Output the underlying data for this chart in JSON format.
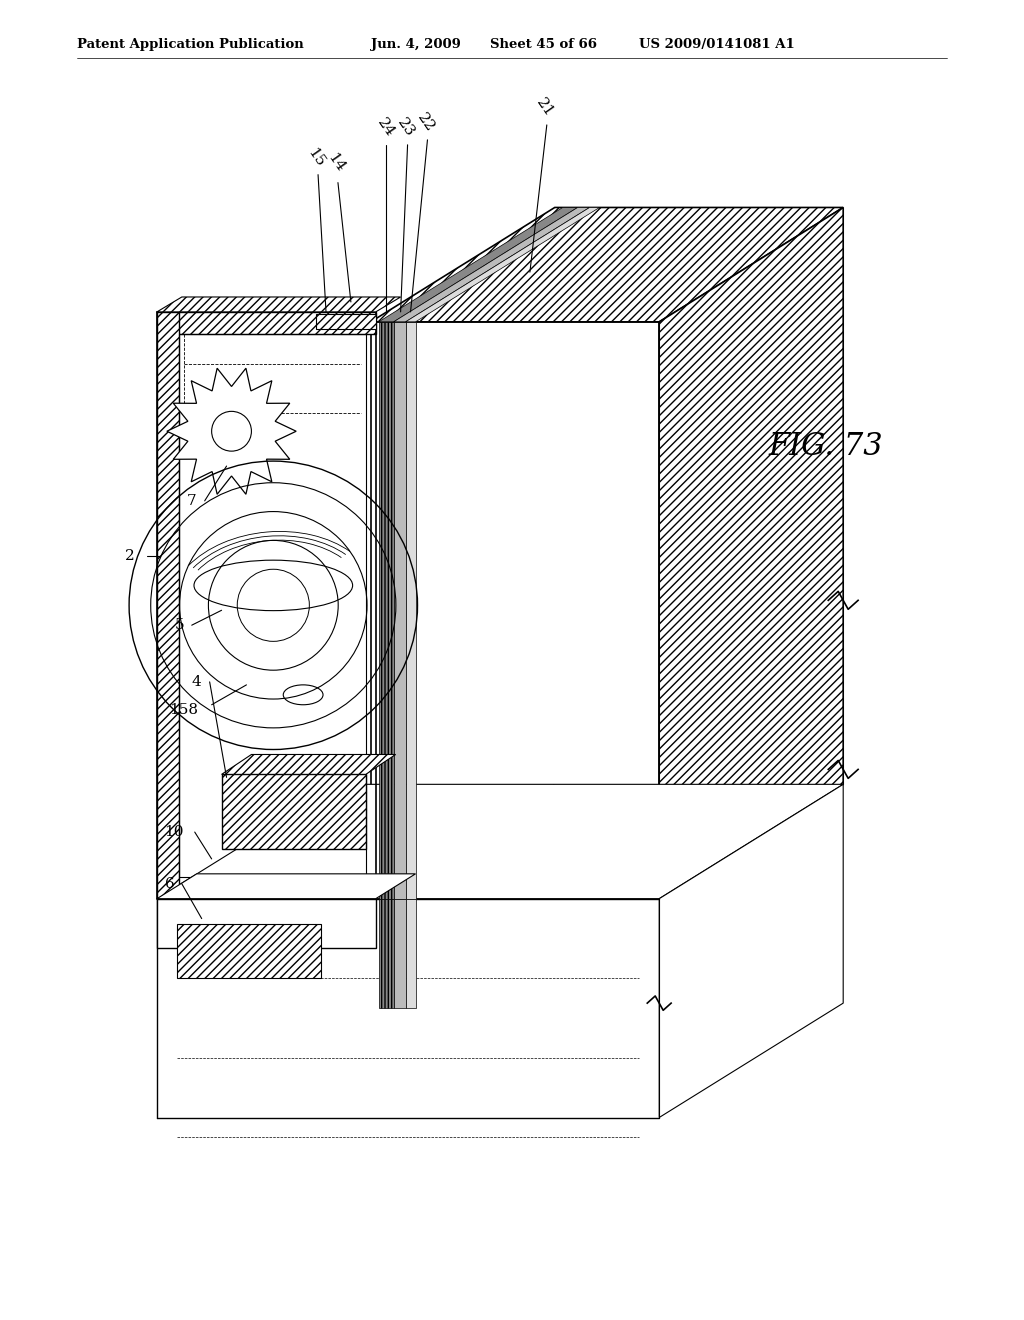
{
  "background_color": "#ffffff",
  "header_text": "Patent Application Publication",
  "header_date": "Jun. 4, 2009",
  "header_sheet": "Sheet 45 of 66",
  "header_patent": "US 2009/0141081 A1",
  "figure_label": "FIG. 73",
  "fig_width": 10.24,
  "fig_height": 13.2,
  "line_color": "#000000",
  "hatch_light": "////",
  "hatch_dense": "////////"
}
